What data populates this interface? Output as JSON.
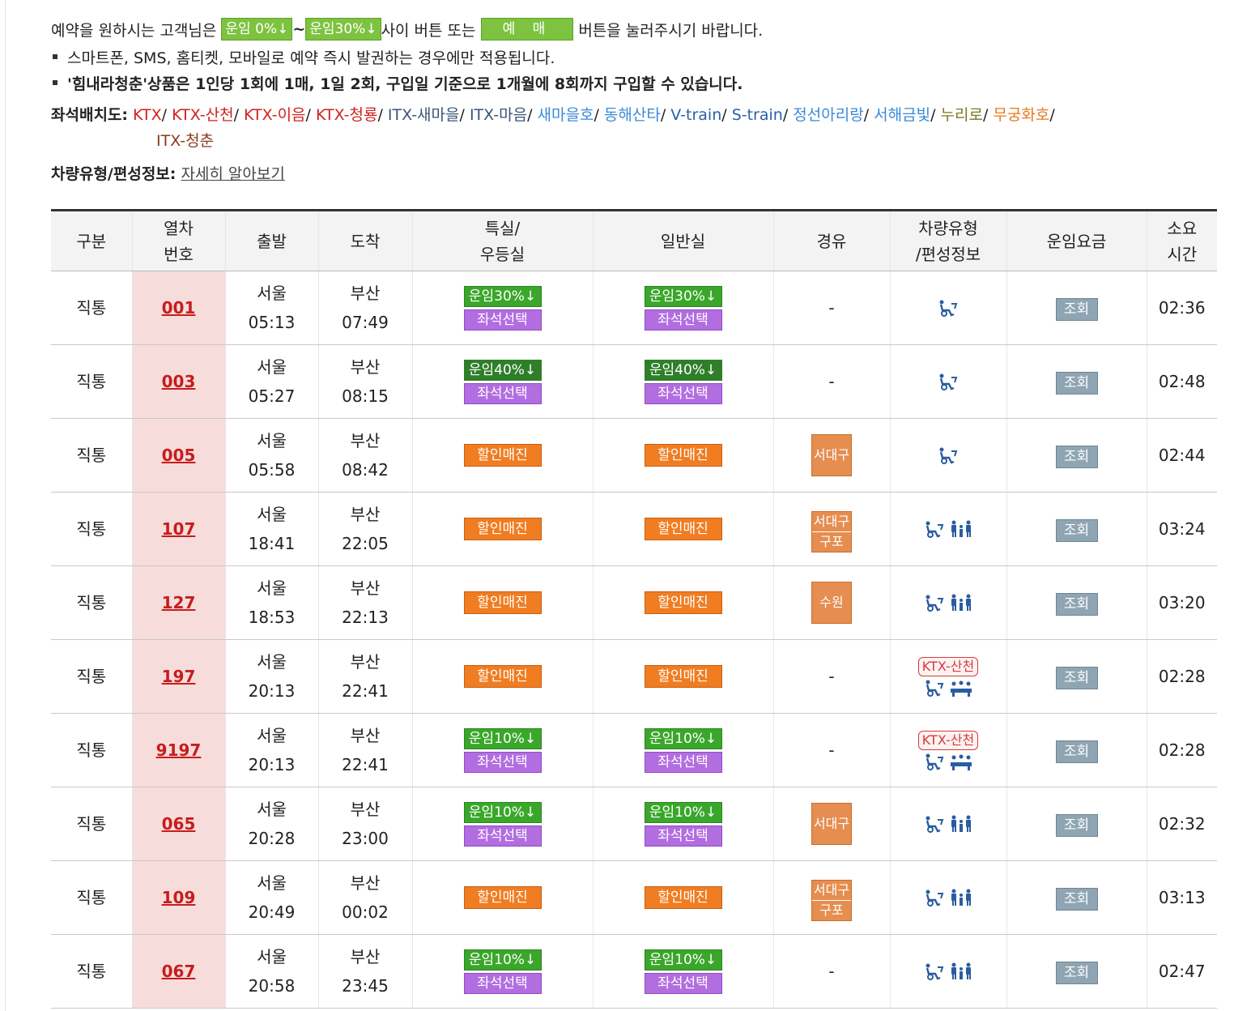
{
  "notice": {
    "intro_before": "예약을 원하시는 고객님은",
    "btn_fare0": "운임 0%↓",
    "tilde": "~",
    "btn_fare30": "운임30%↓",
    "intro_mid": "사이 버튼 또는",
    "btn_reserve": "예 매",
    "intro_after": "버튼을 눌러주시기 바랍니다.",
    "bullet1": "스마트폰, SMS, 홈티켓, 모바일로 예약 즉시 발권하는 경우에만 적용됩니다.",
    "bullet2": "'힘내라청춘'상품은 1인당 1회에 1매, 1일 2회, 구입일 기준으로 1개월에 8회까지 구입할 수 있습니다."
  },
  "seatmap": {
    "label": "좌석배치도:",
    "items": [
      {
        "text": "KTX",
        "cls": "s-red"
      },
      {
        "text": "KTX-산천",
        "cls": "s-red"
      },
      {
        "text": "KTX-이음",
        "cls": "s-red"
      },
      {
        "text": "KTX-청룡",
        "cls": "s-red"
      },
      {
        "text": "ITX-새마을",
        "cls": "s-navy"
      },
      {
        "text": "ITX-마음",
        "cls": "s-navy"
      },
      {
        "text": "새마을호",
        "cls": "s-lblue"
      },
      {
        "text": "동해산타",
        "cls": "s-lblue"
      },
      {
        "text": "V-train",
        "cls": "s-blue"
      },
      {
        "text": "S-train",
        "cls": "s-blue"
      },
      {
        "text": "정선아리랑",
        "cls": "s-lblue"
      },
      {
        "text": "서해금빛",
        "cls": "s-lblue"
      },
      {
        "text": "누리로",
        "cls": "s-olive"
      },
      {
        "text": "무궁화호",
        "cls": "s-orange"
      },
      {
        "text": "ITX-청춘",
        "cls": "s-brown"
      }
    ]
  },
  "vehicle_info": {
    "label": "차량유형/편성정보:",
    "link": "자세히 알아보기"
  },
  "table": {
    "headers": [
      "구분",
      "열차\n번호",
      "출발",
      "도착",
      "특실/\n우등실",
      "일반실",
      "경유",
      "차량유형\n/편성정보",
      "운임요금",
      "소요\n시간"
    ],
    "lookup_label": "조회",
    "seat_select_label": "좌석선택",
    "sold_out_label": "할인매진",
    "dash": "-",
    "sanchun_badge": "KTX-산천",
    "rows": [
      {
        "type": "직통",
        "no": "001",
        "dep_st": "서울",
        "dep_t": "05:13",
        "arr_st": "부산",
        "arr_t": "07:49",
        "special": "운임30%↓",
        "general": "운임30%↓",
        "via": [],
        "veh": "ktx",
        "dur": "02:36",
        "dark": false
      },
      {
        "type": "직통",
        "no": "003",
        "dep_st": "서울",
        "dep_t": "05:27",
        "arr_st": "부산",
        "arr_t": "08:15",
        "special": "운임40%↓",
        "general": "운임40%↓",
        "via": [],
        "veh": "ktx",
        "dur": "02:48",
        "dark": true
      },
      {
        "type": "직통",
        "no": "005",
        "dep_st": "서울",
        "dep_t": "05:58",
        "arr_st": "부산",
        "arr_t": "08:42",
        "special": "",
        "general": "",
        "via": [
          "서대구"
        ],
        "veh": "ktx",
        "dur": "02:44",
        "dark": false
      },
      {
        "type": "직통",
        "no": "107",
        "dep_st": "서울",
        "dep_t": "18:41",
        "arr_st": "부산",
        "arr_t": "22:05",
        "special": "",
        "general": "",
        "via": [
          "서대구",
          "구포"
        ],
        "veh": "ktx-family",
        "dur": "03:24",
        "dark": false
      },
      {
        "type": "직통",
        "no": "127",
        "dep_st": "서울",
        "dep_t": "18:53",
        "arr_st": "부산",
        "arr_t": "22:13",
        "special": "",
        "general": "",
        "via": [
          "수원"
        ],
        "veh": "ktx-family",
        "dur": "03:20",
        "dark": false
      },
      {
        "type": "직통",
        "no": "197",
        "dep_st": "서울",
        "dep_t": "20:13",
        "arr_st": "부산",
        "arr_t": "22:41",
        "special": "",
        "general": "",
        "via": [],
        "veh": "sanchun",
        "dur": "02:28",
        "dark": false
      },
      {
        "type": "직통",
        "no": "9197",
        "dep_st": "서울",
        "dep_t": "20:13",
        "arr_st": "부산",
        "arr_t": "22:41",
        "special": "운임10%↓",
        "general": "운임10%↓",
        "via": [],
        "veh": "sanchun",
        "dur": "02:28",
        "dark": false
      },
      {
        "type": "직통",
        "no": "065",
        "dep_st": "서울",
        "dep_t": "20:28",
        "arr_st": "부산",
        "arr_t": "23:00",
        "special": "운임10%↓",
        "general": "운임10%↓",
        "via": [
          "서대구"
        ],
        "veh": "ktx-family",
        "dur": "02:32",
        "dark": false
      },
      {
        "type": "직통",
        "no": "109",
        "dep_st": "서울",
        "dep_t": "20:49",
        "arr_st": "부산",
        "arr_t": "00:02",
        "special": "",
        "general": "",
        "via": [
          "서대구",
          "구포"
        ],
        "veh": "ktx-family",
        "dur": "03:13",
        "dark": false
      },
      {
        "type": "직통",
        "no": "067",
        "dep_st": "서울",
        "dep_t": "20:58",
        "arr_st": "부산",
        "arr_t": "23:45",
        "special": "운임10%↓",
        "general": "운임10%↓",
        "via": [],
        "veh": "ktx-family",
        "dur": "02:47",
        "dark": false
      }
    ]
  },
  "colors": {
    "green": "#3aa72a",
    "purple": "#b26ee0",
    "orange": "#f07d22",
    "train_no": "#c71c1c",
    "icon_blue": "#2a5da0"
  }
}
